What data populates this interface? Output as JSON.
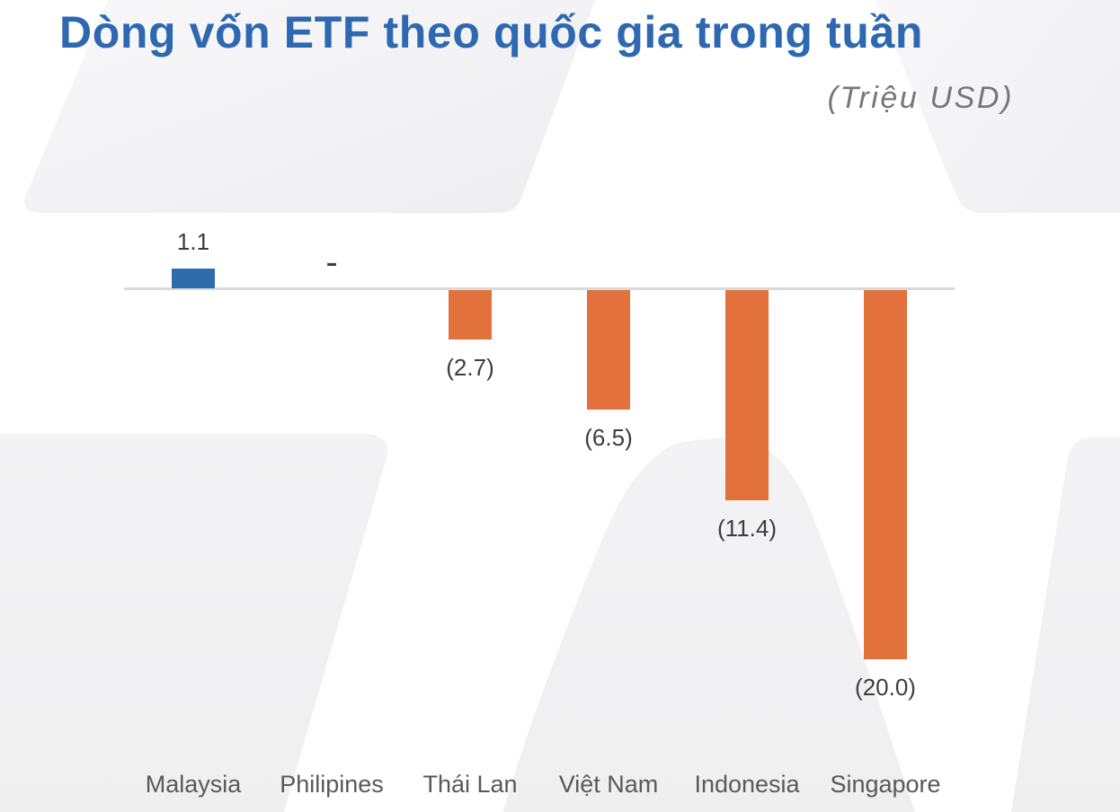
{
  "title": "Dòng vốn ETF theo quốc gia trong tuần",
  "subtitle": "(Triệu USD)",
  "colors": {
    "title": "#2D68B0",
    "subtitle": "#767676",
    "positive_bar": "#2E6BAD",
    "negative_bar": "#E2713C",
    "axis_line": "#D9D9D9",
    "value_label": "#3D3D3D",
    "category_label": "#595959",
    "watermark": "#F1F1F2"
  },
  "chart_data": {
    "type": "bar",
    "categories": [
      "Malaysia",
      "Philipines",
      "Thái Lan",
      "Việt Nam",
      "Indonesia",
      "Singapore"
    ],
    "values": [
      1.1,
      0,
      -2.7,
      -6.5,
      -11.4,
      -20.0
    ],
    "value_labels": [
      "1.1",
      "-",
      "(2.7)",
      "(6.5)",
      "(11.4)",
      "(20.0)"
    ],
    "title": "Dòng vốn ETF theo quốc gia trong tuần",
    "unit_label": "(Triệu USD)",
    "xlabel": "",
    "ylabel": "",
    "grid": false,
    "value_axis_hidden": true,
    "legend": "none"
  }
}
